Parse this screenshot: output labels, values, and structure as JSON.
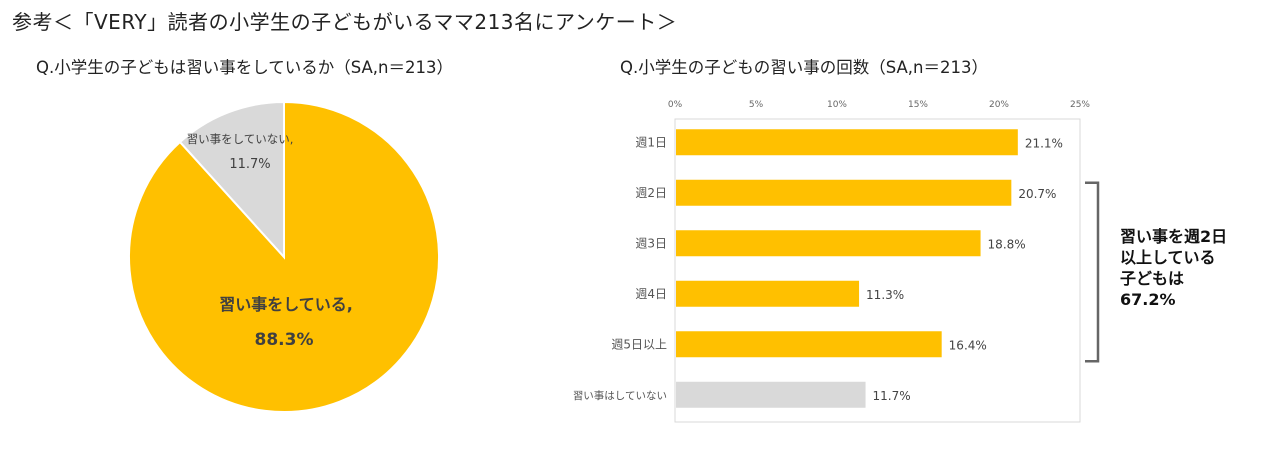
{
  "header": {
    "title": "参考＜「VERY」読者の小学生の子どもがいるママ213名にアンケート＞"
  },
  "colors": {
    "primary": "#FFC000",
    "secondary": "#D9D9D9",
    "text": "#404040"
  },
  "chart_data": [
    {
      "type": "pie",
      "title": "Q.小学生の子どもは習い事をしているか（SA,n＝213）",
      "slices": [
        {
          "label": "習い事をしている,",
          "value": 88.3,
          "value_label": "88.3%",
          "color": "#FFC000"
        },
        {
          "label": "習い事をしていない,",
          "value": 11.7,
          "value_label": "11.7%",
          "color": "#D9D9D9"
        }
      ]
    },
    {
      "type": "bar",
      "orientation": "horizontal",
      "title": "Q.小学生の子どもの習い事の回数（SA,n＝213）",
      "categories": [
        "週1日",
        "週2日",
        "週3日",
        "週4日",
        "週5日以上",
        "習い事はしていない"
      ],
      "values": [
        21.1,
        20.7,
        18.8,
        11.3,
        16.4,
        11.7
      ],
      "value_labels": [
        "21.1%",
        "20.7%",
        "18.8%",
        "11.3%",
        "16.4%",
        "11.7%"
      ],
      "bar_colors": [
        "#FFC000",
        "#FFC000",
        "#FFC000",
        "#FFC000",
        "#FFC000",
        "#D9D9D9"
      ],
      "xlim": [
        0,
        25
      ],
      "xticks": [
        "0%",
        "5%",
        "10%",
        "15%",
        "20%",
        "25%"
      ],
      "xtick_values": [
        0,
        5,
        10,
        15,
        20,
        25
      ],
      "grid": false,
      "annotation": {
        "lines": [
          "習い事を週2日",
          "以上している",
          "子どもは",
          "67.2%"
        ],
        "bracket_categories": [
          "週2日",
          "週5日以上"
        ]
      }
    }
  ]
}
